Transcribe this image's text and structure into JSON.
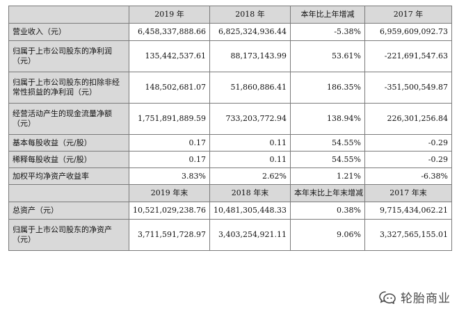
{
  "table": {
    "header1": [
      "",
      "2019 年",
      "2018 年",
      "本年比上年增减",
      "2017 年"
    ],
    "rows1": [
      {
        "label": "营业收入（元）",
        "values": [
          "6,458,337,888.66",
          "6,825,324,936.44",
          "-5.38%",
          "6,959,609,092.73"
        ]
      },
      {
        "label": "归属于上市公司股东的净利润（元）",
        "values": [
          "135,442,537.61",
          "88,173,143.99",
          "53.61%",
          "-221,691,547.63"
        ]
      },
      {
        "label": "归属于上市公司股东的扣除非经常性损益的净利润（元）",
        "values": [
          "148,502,681.07",
          "51,860,886.41",
          "186.35%",
          "-351,500,549.87"
        ]
      },
      {
        "label": "经营活动产生的现金流量净额（元）",
        "values": [
          "1,751,891,889.59",
          "733,203,772.94",
          "138.94%",
          "226,301,256.84"
        ]
      },
      {
        "label": "基本每股收益（元/股）",
        "values": [
          "0.17",
          "0.11",
          "54.55%",
          "-0.29"
        ]
      },
      {
        "label": "稀释每股收益（元/股）",
        "values": [
          "0.17",
          "0.11",
          "54.55%",
          "-0.29"
        ]
      },
      {
        "label": "加权平均净资产收益率",
        "values": [
          "3.83%",
          "2.62%",
          "1.21%",
          "-6.38%"
        ]
      }
    ],
    "header2": [
      "",
      "2019 年末",
      "2018 年末",
      "本年末比上年末增减",
      "2017 年末"
    ],
    "rows2": [
      {
        "label": "总资产（元）",
        "values": [
          "10,521,029,238.76",
          "10,481,305,448.33",
          "0.38%",
          "9,715,434,062.21"
        ]
      },
      {
        "label": "归属于上市公司股东的净资产（元）",
        "values": [
          "3,711,591,728.97",
          "3,403,254,921.11",
          "9.06%",
          "3,327,565,155.01"
        ]
      }
    ]
  },
  "watermark": {
    "text": "轮胎商业"
  }
}
